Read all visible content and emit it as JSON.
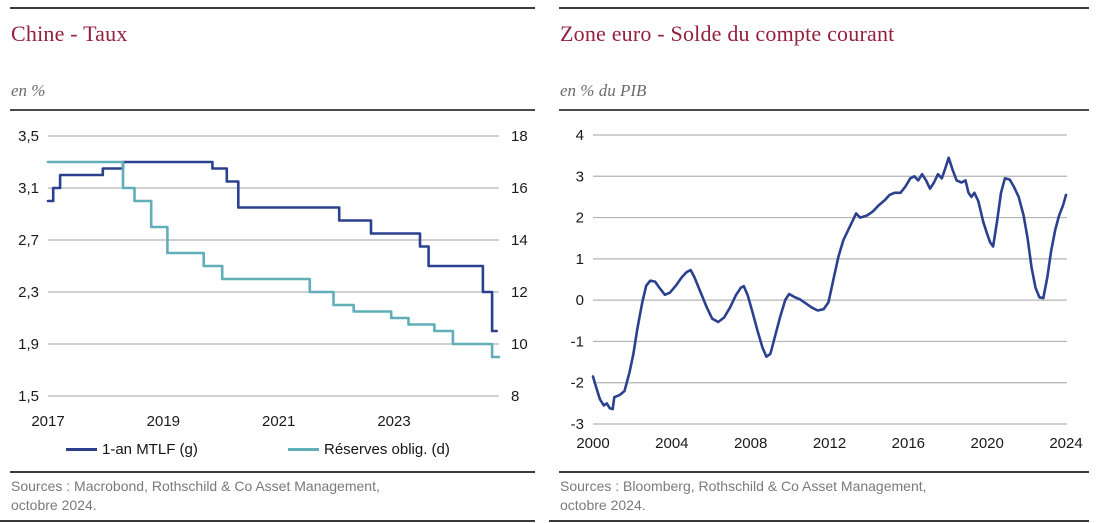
{
  "colors": {
    "navy": "#2B418E",
    "teal": "#60AEB7",
    "title_red": "#93203F",
    "grid": "#B3B3B3",
    "tick": "#1A1A1A",
    "subtitle": "#6B6B6B",
    "source": "#7A7A7A",
    "rule_dark": "#3A3A3A"
  },
  "chart_data": [
    {
      "id": "china-rates",
      "type": "line",
      "title": "Chine - Taux",
      "subtitle": "en %",
      "x_range": [
        2017,
        2024.82
      ],
      "xticks": {
        "values": [
          2017,
          2019,
          2021,
          2023
        ],
        "labels": [
          "2017",
          "2019",
          "2021",
          "2023"
        ]
      },
      "axes": {
        "left": {
          "range": [
            1.5,
            3.5
          ],
          "values": [
            3.5,
            3.1,
            2.7,
            2.3,
            1.9,
            1.5
          ],
          "labels": [
            "3,5",
            "3,1",
            "2,7",
            "2,3",
            "1,9",
            "1,5"
          ]
        },
        "right": {
          "range": [
            8,
            18
          ],
          "values": [
            18,
            16,
            14,
            12,
            10,
            8
          ],
          "labels": [
            "18",
            "16",
            "14",
            "12",
            "10",
            "8"
          ]
        }
      },
      "series": [
        {
          "name": "1-an MTLF (g)",
          "axis": "left",
          "step": true,
          "color": "#2B418E",
          "end": 2024.78,
          "points": [
            [
              2017.0,
              3.0
            ],
            [
              2017.09,
              3.1
            ],
            [
              2017.21,
              3.2
            ],
            [
              2017.95,
              3.25
            ],
            [
              2018.3,
              3.3
            ],
            [
              2019.85,
              3.25
            ],
            [
              2020.1,
              3.15
            ],
            [
              2020.3,
              2.95
            ],
            [
              2022.05,
              2.85
            ],
            [
              2022.6,
              2.75
            ],
            [
              2023.45,
              2.65
            ],
            [
              2023.6,
              2.5
            ],
            [
              2024.54,
              2.3
            ],
            [
              2024.7,
              2.0
            ]
          ]
        },
        {
          "name": "Réserves oblig. (d)",
          "axis": "right",
          "step": true,
          "color": "#60AEB7",
          "end": 2024.82,
          "points": [
            [
              2017.0,
              17.0
            ],
            [
              2018.3,
              16.0
            ],
            [
              2018.5,
              15.5
            ],
            [
              2018.79,
              14.5
            ],
            [
              2019.07,
              13.5
            ],
            [
              2019.7,
              13.0
            ],
            [
              2020.02,
              12.5
            ],
            [
              2021.54,
              12.0
            ],
            [
              2021.95,
              11.5
            ],
            [
              2022.3,
              11.25
            ],
            [
              2022.95,
              11.0
            ],
            [
              2023.25,
              10.75
            ],
            [
              2023.7,
              10.5
            ],
            [
              2024.02,
              10.0
            ],
            [
              2024.7,
              9.5
            ]
          ]
        }
      ],
      "source_lines": [
        "Sources : Macrobond, Rothschild & Co Asset Management,",
        "octobre 2024."
      ]
    },
    {
      "id": "euro-current-account",
      "type": "line",
      "title": "Zone euro - Solde du compte courant",
      "subtitle": "en % du PIB",
      "x_range": [
        2000,
        2024.05
      ],
      "xticks": {
        "values": [
          2000,
          2004,
          2008,
          2012,
          2016,
          2020,
          2024
        ],
        "labels": [
          "2000",
          "2004",
          "2008",
          "2012",
          "2016",
          "2020",
          "2024"
        ]
      },
      "axes": {
        "left": {
          "range": [
            -3,
            4
          ],
          "values": [
            4,
            3,
            2,
            1,
            0,
            -1,
            -2,
            -3
          ],
          "labels": [
            "4",
            "3",
            "2",
            "1",
            "0",
            "-1",
            "-2",
            "-3"
          ]
        }
      },
      "series": [
        {
          "name": "Solde du compte courant",
          "axis": "left",
          "step": false,
          "color": "#2B418E",
          "points": [
            [
              2000.0,
              -1.85
            ],
            [
              2000.15,
              -2.1
            ],
            [
              2000.35,
              -2.4
            ],
            [
              2000.55,
              -2.55
            ],
            [
              2000.7,
              -2.5
            ],
            [
              2000.85,
              -2.62
            ],
            [
              2001.0,
              -2.64
            ],
            [
              2001.08,
              -2.35
            ],
            [
              2001.35,
              -2.3
            ],
            [
              2001.6,
              -2.2
            ],
            [
              2001.85,
              -1.75
            ],
            [
              2002.05,
              -1.3
            ],
            [
              2002.25,
              -0.7
            ],
            [
              2002.5,
              -0.05
            ],
            [
              2002.7,
              0.35
            ],
            [
              2002.9,
              0.47
            ],
            [
              2003.15,
              0.45
            ],
            [
              2003.4,
              0.28
            ],
            [
              2003.65,
              0.13
            ],
            [
              2003.9,
              0.18
            ],
            [
              2004.2,
              0.35
            ],
            [
              2004.5,
              0.55
            ],
            [
              2004.75,
              0.68
            ],
            [
              2004.95,
              0.73
            ],
            [
              2005.15,
              0.55
            ],
            [
              2005.45,
              0.2
            ],
            [
              2005.75,
              -0.15
            ],
            [
              2006.05,
              -0.45
            ],
            [
              2006.35,
              -0.53
            ],
            [
              2006.65,
              -0.42
            ],
            [
              2006.95,
              -0.18
            ],
            [
              2007.25,
              0.12
            ],
            [
              2007.5,
              0.3
            ],
            [
              2007.65,
              0.34
            ],
            [
              2007.85,
              0.12
            ],
            [
              2008.1,
              -0.3
            ],
            [
              2008.35,
              -0.75
            ],
            [
              2008.6,
              -1.15
            ],
            [
              2008.8,
              -1.37
            ],
            [
              2009.0,
              -1.3
            ],
            [
              2009.25,
              -0.85
            ],
            [
              2009.5,
              -0.4
            ],
            [
              2009.75,
              0.0
            ],
            [
              2009.95,
              0.15
            ],
            [
              2010.2,
              0.08
            ],
            [
              2010.5,
              0.02
            ],
            [
              2010.8,
              -0.08
            ],
            [
              2011.1,
              -0.18
            ],
            [
              2011.4,
              -0.25
            ],
            [
              2011.7,
              -0.22
            ],
            [
              2011.95,
              -0.05
            ],
            [
              2012.2,
              0.5
            ],
            [
              2012.45,
              1.05
            ],
            [
              2012.7,
              1.45
            ],
            [
              2012.95,
              1.7
            ],
            [
              2013.2,
              1.95
            ],
            [
              2013.35,
              2.1
            ],
            [
              2013.55,
              2.0
            ],
            [
              2013.9,
              2.05
            ],
            [
              2014.2,
              2.15
            ],
            [
              2014.5,
              2.3
            ],
            [
              2014.8,
              2.42
            ],
            [
              2015.05,
              2.55
            ],
            [
              2015.3,
              2.6
            ],
            [
              2015.6,
              2.6
            ],
            [
              2015.85,
              2.75
            ],
            [
              2016.1,
              2.95
            ],
            [
              2016.3,
              3.0
            ],
            [
              2016.5,
              2.9
            ],
            [
              2016.7,
              3.05
            ],
            [
              2016.9,
              2.9
            ],
            [
              2017.1,
              2.7
            ],
            [
              2017.3,
              2.85
            ],
            [
              2017.5,
              3.05
            ],
            [
              2017.7,
              2.95
            ],
            [
              2017.88,
              3.2
            ],
            [
              2018.05,
              3.45
            ],
            [
              2018.25,
              3.15
            ],
            [
              2018.45,
              2.9
            ],
            [
              2018.7,
              2.85
            ],
            [
              2018.9,
              2.9
            ],
            [
              2019.05,
              2.6
            ],
            [
              2019.2,
              2.5
            ],
            [
              2019.35,
              2.6
            ],
            [
              2019.55,
              2.4
            ],
            [
              2019.8,
              1.9
            ],
            [
              2020.0,
              1.6
            ],
            [
              2020.15,
              1.4
            ],
            [
              2020.3,
              1.3
            ],
            [
              2020.5,
              1.9
            ],
            [
              2020.7,
              2.6
            ],
            [
              2020.9,
              2.95
            ],
            [
              2021.15,
              2.92
            ],
            [
              2021.35,
              2.75
            ],
            [
              2021.6,
              2.5
            ],
            [
              2021.85,
              2.05
            ],
            [
              2022.05,
              1.5
            ],
            [
              2022.25,
              0.8
            ],
            [
              2022.45,
              0.3
            ],
            [
              2022.65,
              0.07
            ],
            [
              2022.85,
              0.05
            ],
            [
              2023.05,
              0.55
            ],
            [
              2023.25,
              1.2
            ],
            [
              2023.45,
              1.7
            ],
            [
              2023.65,
              2.05
            ],
            [
              2023.85,
              2.3
            ],
            [
              2024.0,
              2.55
            ]
          ]
        }
      ],
      "source_lines": [
        "Sources : Bloomberg, Rothschild & Co Asset Management,",
        "octobre 2024."
      ]
    }
  ]
}
